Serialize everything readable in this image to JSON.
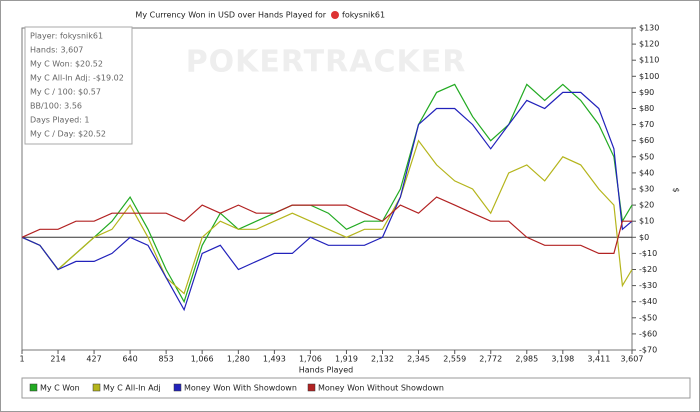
{
  "chart_data": {
    "type": "line",
    "title": "My Currency Won in USD over Hands Played for",
    "player": "fokysnik61",
    "watermark": "POKERTRACKER",
    "x_label": "Hands Played",
    "y_label": "$",
    "info_lines": [
      "Player: fokysnik61",
      "Hands: 3,607",
      "My C Won: $20.52",
      "My C All-In Adj: -$19.02",
      "My C / 100: $0.57",
      "BB/100: 3.56",
      "Days Played: 1",
      "My C / Day: $20.52"
    ],
    "x": [
      1,
      107,
      214,
      320,
      427,
      533,
      640,
      746,
      853,
      959,
      1066,
      1173,
      1280,
      1386,
      1493,
      1599,
      1706,
      1812,
      1919,
      2025,
      2132,
      2238,
      2345,
      2452,
      2559,
      2665,
      2772,
      2878,
      2985,
      3091,
      3198,
      3304,
      3411,
      3500,
      3550,
      3607
    ],
    "series": [
      {
        "name": "My C Won",
        "color": "#22aa22",
        "values": [
          0,
          -5,
          -20,
          -10,
          0,
          10,
          25,
          5,
          -20,
          -40,
          -5,
          15,
          5,
          10,
          15,
          20,
          20,
          15,
          5,
          10,
          10,
          30,
          70,
          90,
          95,
          75,
          60,
          70,
          95,
          85,
          95,
          85,
          70,
          50,
          10,
          20
        ]
      },
      {
        "name": "My C All-In Adj",
        "color": "#b5b51c",
        "values": [
          0,
          -5,
          -20,
          -10,
          0,
          5,
          20,
          0,
          -25,
          -35,
          0,
          10,
          5,
          5,
          10,
          15,
          10,
          5,
          0,
          5,
          5,
          25,
          60,
          45,
          35,
          30,
          15,
          40,
          45,
          35,
          50,
          45,
          30,
          20,
          -30,
          -20
        ]
      },
      {
        "name": "Money Won With Showdown",
        "color": "#2222bb",
        "values": [
          0,
          -5,
          -20,
          -15,
          -15,
          -10,
          0,
          -5,
          -25,
          -45,
          -10,
          -5,
          -20,
          -15,
          -10,
          -10,
          0,
          -5,
          -5,
          -5,
          0,
          25,
          70,
          80,
          80,
          70,
          55,
          70,
          85,
          80,
          90,
          90,
          80,
          55,
          5,
          10
        ]
      },
      {
        "name": "Money Won Without Showdown",
        "color": "#b22222",
        "values": [
          0,
          5,
          5,
          10,
          10,
          15,
          15,
          15,
          15,
          10,
          20,
          15,
          20,
          15,
          15,
          20,
          20,
          20,
          20,
          15,
          10,
          20,
          15,
          25,
          20,
          15,
          10,
          10,
          0,
          -5,
          -5,
          -5,
          -10,
          -10,
          10,
          10
        ]
      }
    ],
    "xlim": [
      1,
      3607
    ],
    "xticks": [
      1,
      214,
      427,
      640,
      853,
      {
        "value": 1066,
        "label": "1,066"
      },
      {
        "value": 1280,
        "label": "1,280"
      },
      {
        "value": 1493,
        "label": "1,493"
      },
      {
        "value": 1706,
        "label": "1,706"
      },
      {
        "value": 1919,
        "label": "1,919"
      },
      {
        "value": 2132,
        "label": "2,132"
      },
      {
        "value": 2345,
        "label": "2,345"
      },
      {
        "value": 2559,
        "label": "2,559"
      },
      {
        "value": 2772,
        "label": "2,772"
      },
      {
        "value": 2985,
        "label": "2,985"
      },
      {
        "value": 3198,
        "label": "3,198"
      },
      {
        "value": 3411,
        "label": "3,411"
      },
      {
        "value": 3607,
        "label": "3,607"
      }
    ],
    "ylim": [
      -70,
      130
    ],
    "yticks": [
      {
        "value": -70,
        "label": "-$70"
      },
      {
        "value": -60,
        "label": "-$60"
      },
      {
        "value": -50,
        "label": "-$50"
      },
      {
        "value": -40,
        "label": "-$40"
      },
      {
        "value": -30,
        "label": "-$30"
      },
      {
        "value": -20,
        "label": "-$20"
      },
      {
        "value": -10,
        "label": "-$10"
      },
      {
        "value": 0,
        "label": "$0"
      },
      {
        "value": 10,
        "label": "$10"
      },
      {
        "value": 20,
        "label": "$20"
      },
      {
        "value": 30,
        "label": "$30"
      },
      {
        "value": 40,
        "label": "$40"
      },
      {
        "value": 50,
        "label": "$50"
      },
      {
        "value": 60,
        "label": "$60"
      },
      {
        "value": 70,
        "label": "$70"
      },
      {
        "value": 80,
        "label": "$80"
      },
      {
        "value": 90,
        "label": "$90"
      },
      {
        "value": 100,
        "label": "$100"
      },
      {
        "value": 110,
        "label": "$110"
      },
      {
        "value": 120,
        "label": "$120"
      },
      {
        "value": 130,
        "label": "$130"
      }
    ],
    "grid": false,
    "legend": "bottom"
  }
}
